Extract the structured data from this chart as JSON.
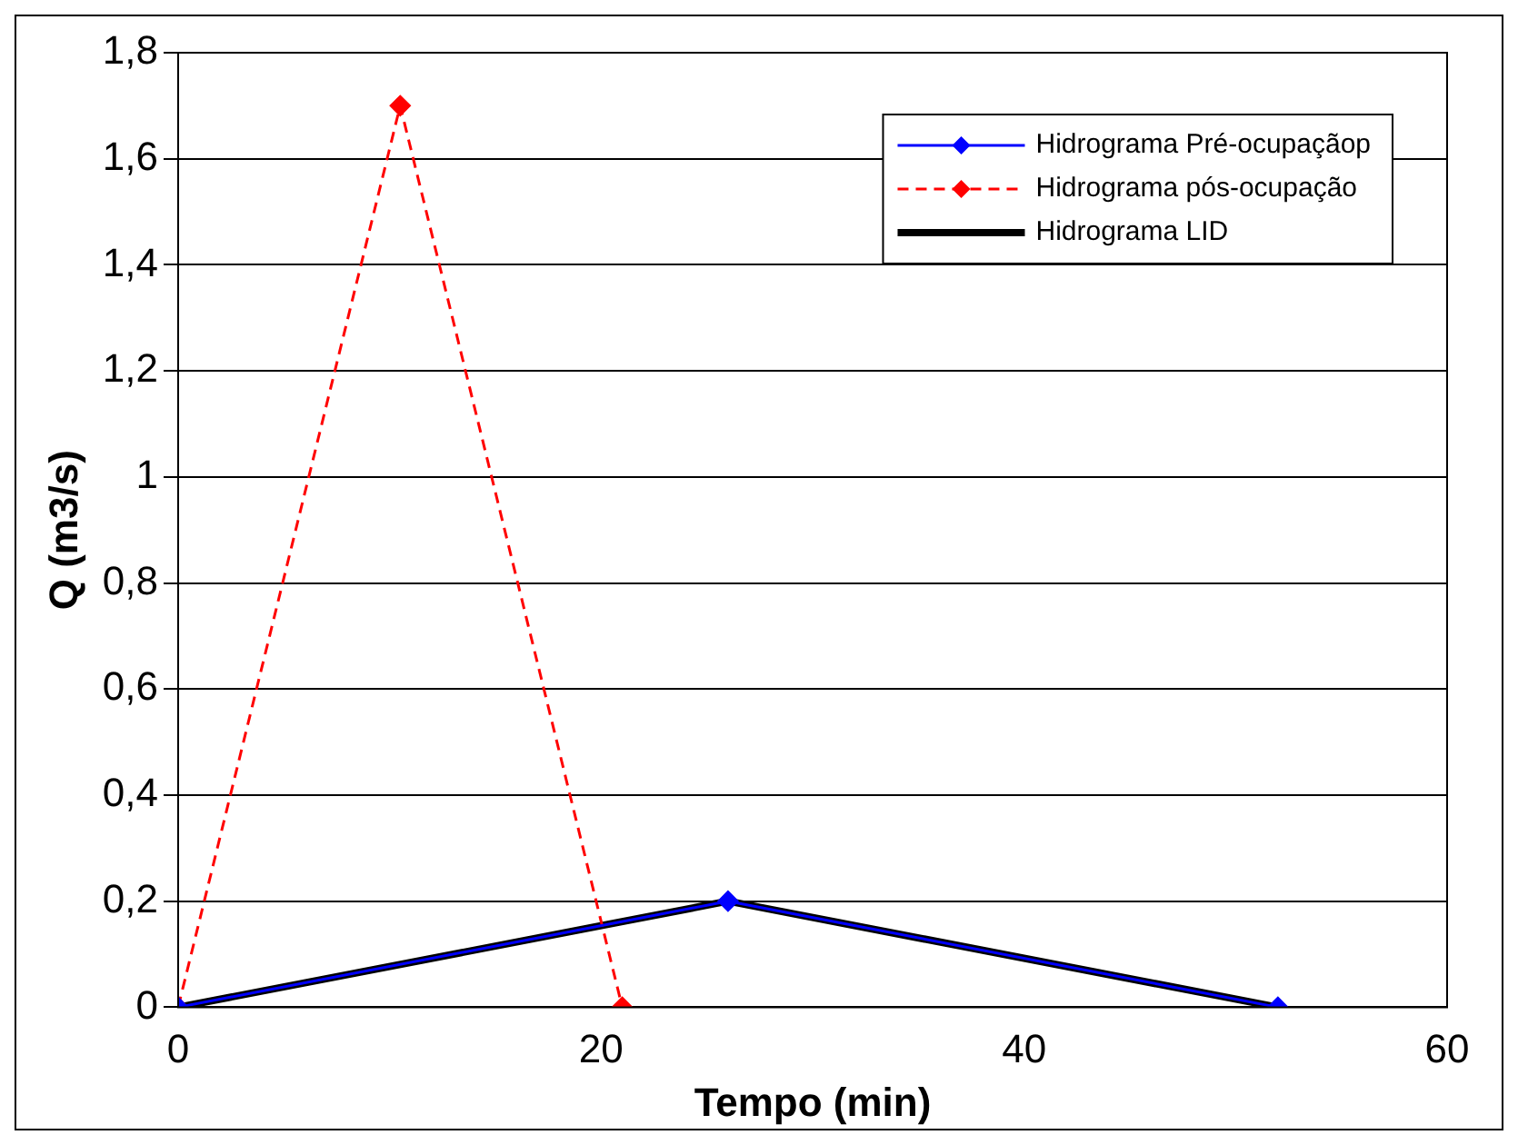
{
  "chart_data": {
    "type": "line",
    "xlabel": "Tempo (min)",
    "ylabel": "Q (m3/s)",
    "xlim": [
      0,
      60
    ],
    "xticks": [
      0,
      20,
      40,
      60
    ],
    "ylim": [
      0,
      1.8
    ],
    "yticks": [
      0,
      {
        "value": 0.2,
        "label": "0,2"
      },
      {
        "value": 0.4,
        "label": "0,4"
      },
      {
        "value": 0.6,
        "label": "0,6"
      },
      {
        "value": 0.8,
        "label": "0,8"
      },
      1,
      {
        "value": 1.2,
        "label": "1,2"
      },
      {
        "value": 1.4,
        "label": "1,4"
      },
      {
        "value": 1.6,
        "label": "1,6"
      },
      {
        "value": 1.8,
        "label": "1,8"
      }
    ],
    "grid": "y",
    "legend": "top right",
    "series": [
      {
        "name": "Hidrograma Pré-ocupaçãop",
        "color": "#0000ff",
        "x": [
          0,
          26,
          52
        ],
        "values": [
          0,
          0.2,
          0
        ],
        "marker": "diamond",
        "line_style": "solid"
      },
      {
        "name": "Hidrograma pós-ocupação",
        "color": "#ff0000",
        "x": [
          0,
          10.5,
          21
        ],
        "values": [
          0,
          1.7,
          0
        ],
        "marker": "diamond",
        "line_style": "dashed"
      },
      {
        "name": "Hidrograma LID",
        "color": "#000000",
        "x": [
          0,
          26,
          52
        ],
        "values": [
          0,
          0.2,
          0
        ],
        "marker": "none",
        "line_style": "solid"
      }
    ]
  }
}
